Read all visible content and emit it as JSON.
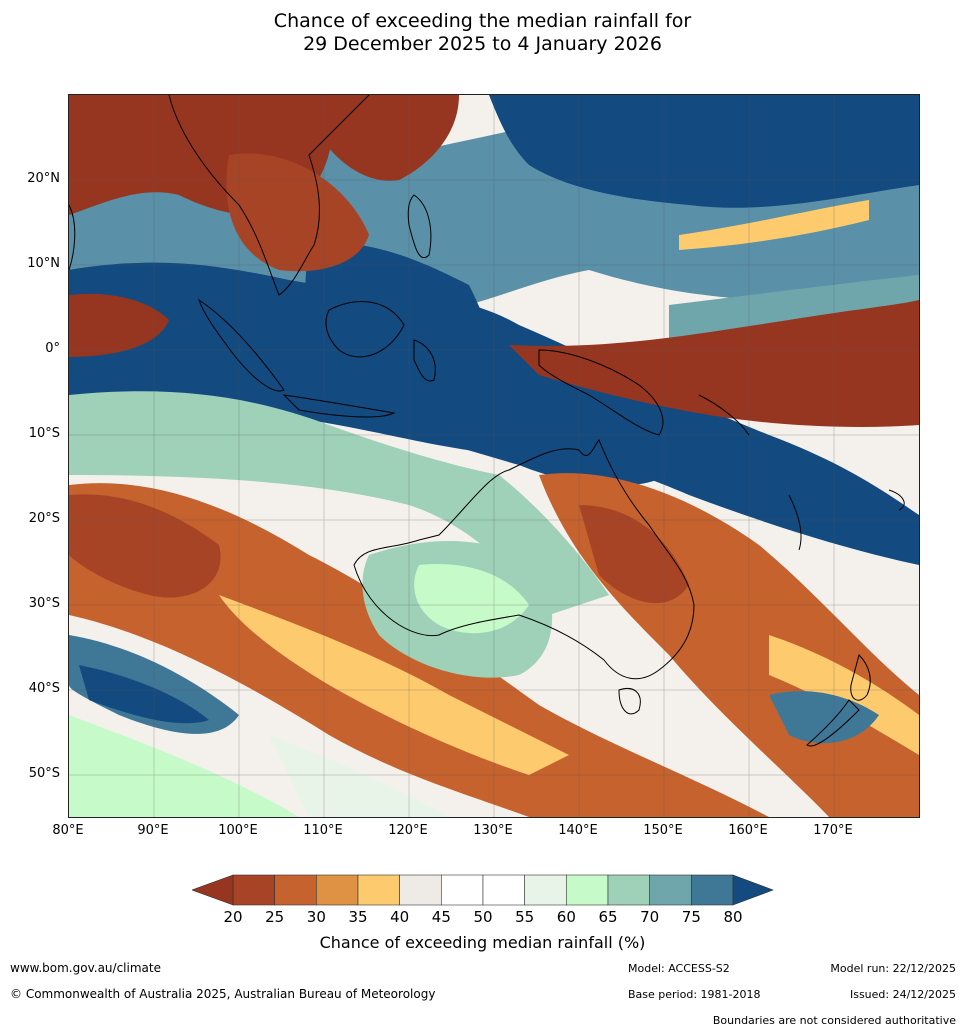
{
  "title_line1": "Chance of exceeding the median rainfall for",
  "title_line2": "29 December 2025 to 4 January 2026",
  "lat_labels": [
    "20°N",
    "10°N",
    "0°",
    "10°S",
    "20°S",
    "30°S",
    "40°S",
    "50°S"
  ],
  "lon_labels": [
    "80°E",
    "90°E",
    "100°E",
    "110°E",
    "120°E",
    "130°E",
    "140°E",
    "150°E",
    "160°E",
    "170°E"
  ],
  "colorbar": {
    "ticks": [
      "20",
      "25",
      "30",
      "35",
      "40",
      "45",
      "50",
      "55",
      "60",
      "65",
      "70",
      "75",
      "80"
    ],
    "colors": [
      "#a84426",
      "#c6622e",
      "#df9144",
      "#fdcb6e",
      "#eeebe6",
      "#ffffff",
      "#ffffff",
      "#e8f4e8",
      "#c6fbc9",
      "#9ed1b8",
      "#6ea6ac",
      "#3f7797"
    ],
    "under_color": "#963620",
    "over_color": "#134a80",
    "label": "Chance of exceeding median rainfall (%)"
  },
  "footer": {
    "website": "www.bom.gov.au/climate",
    "copyright": "© Commonwealth of Australia 2025, Australian Bureau of Meteorology",
    "model": "Model: ACCESS-S2",
    "base_period": "Base period: 1981-2018",
    "model_run": "Model run: 22/12/2025",
    "issued": "Issued: 24/12/2025",
    "disclaimer": "Boundaries are not considered authoritative"
  }
}
